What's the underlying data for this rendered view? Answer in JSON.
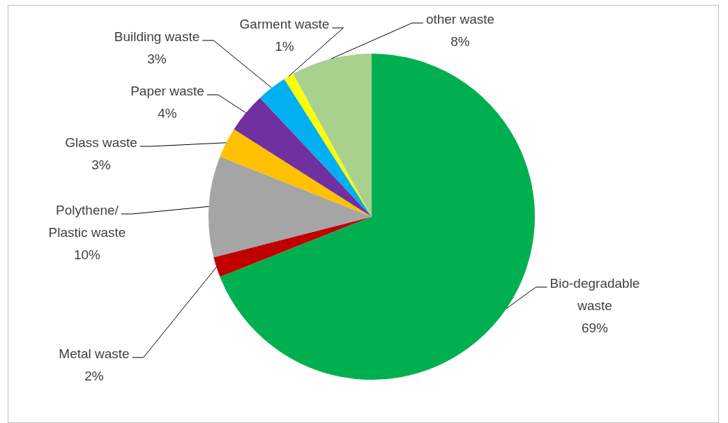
{
  "chart_data": {
    "type": "pie",
    "categories": [
      "Bio-degradable waste",
      "Metal waste",
      "Polythene/ Plastic waste",
      "Glass waste",
      "Paper waste",
      "Building waste",
      "Garment waste",
      "other waste"
    ],
    "values": [
      69,
      2,
      10,
      3,
      4,
      3,
      1,
      8
    ],
    "value_labels": [
      "69%",
      "2%",
      "10%",
      "3%",
      "4%",
      "3%",
      "1%",
      "8%"
    ],
    "colors": [
      "#00b050",
      "#c00000",
      "#a5a5a5",
      "#ffc000",
      "#7030a0",
      "#00b0f0",
      "#ffff00",
      "#a9d18e"
    ],
    "legend": false
  }
}
